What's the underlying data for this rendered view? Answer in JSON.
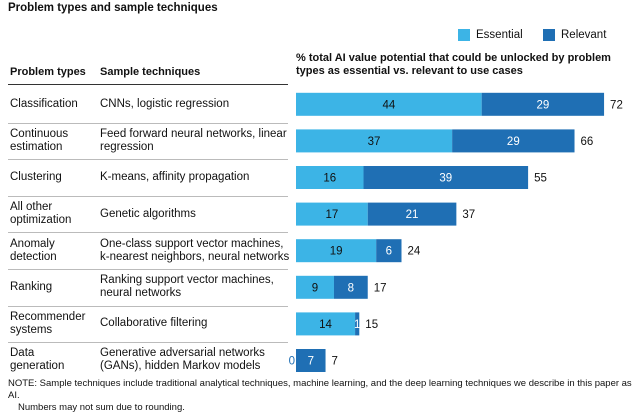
{
  "title": "Problem types and sample techniques",
  "legend": {
    "essential": "Essential",
    "relevant": "Relevant"
  },
  "colors": {
    "essential": "#3cb4e6",
    "relevant": "#1f6fb4"
  },
  "table": {
    "headers": {
      "problem_types": "Problem types",
      "sample_techniques": "Sample techniques",
      "chart_description": [
        "% total AI value potential that could be unlocked by problem",
        "types as essential vs. relevant to use cases"
      ]
    },
    "rows": [
      {
        "problem_type": [
          "Classification"
        ],
        "techniques": [
          "CNNs, logistic regression"
        ]
      },
      {
        "problem_type": [
          "Continuous",
          "estimation"
        ],
        "techniques": [
          "Feed forward neural networks, linear",
          "regression"
        ]
      },
      {
        "problem_type": [
          "Clustering"
        ],
        "techniques": [
          "K-means, affinity propagation"
        ]
      },
      {
        "problem_type": [
          "All other",
          "optimization"
        ],
        "techniques": [
          "Genetic algorithms"
        ]
      },
      {
        "problem_type": [
          "Anomaly",
          "detection"
        ],
        "techniques": [
          "One-class support vector machines,",
          "k-nearest neighbors, neural networks"
        ]
      },
      {
        "problem_type": [
          "Ranking"
        ],
        "techniques": [
          "Ranking support vector machines,",
          "neural networks"
        ]
      },
      {
        "problem_type": [
          "Recommender",
          "systems"
        ],
        "techniques": [
          "Collaborative filtering"
        ]
      },
      {
        "problem_type": [
          "Data",
          "generation"
        ],
        "techniques": [
          "Generative adversarial networks",
          "(GANs), hidden Markov models"
        ]
      }
    ]
  },
  "chart_data": {
    "type": "bar",
    "orientation": "horizontal",
    "stacked": true,
    "title": "% total AI value potential that could be unlocked by problem types as essential vs. relevant to use cases",
    "categories": [
      "Classification",
      "Continuous estimation",
      "Clustering",
      "All other optimization",
      "Anomaly detection",
      "Ranking",
      "Recommender systems",
      "Data generation"
    ],
    "series": [
      {
        "name": "Essential",
        "values": [
          44,
          37,
          16,
          17,
          19,
          9,
          14,
          0
        ],
        "labels": [
          "44",
          "37",
          "16",
          "17",
          "19",
          "9",
          "14",
          "0"
        ]
      },
      {
        "name": "Relevant",
        "values": [
          29,
          29,
          39,
          21,
          6,
          8,
          1,
          7
        ],
        "labels": [
          "29",
          "29",
          "39",
          "21",
          "6",
          "8",
          "1",
          "7"
        ]
      }
    ],
    "totals": [
      "72",
      "66",
      "55",
      "37",
      "24",
      "17",
      "15",
      "7"
    ],
    "xlim": [
      0,
      73
    ]
  },
  "note": [
    "NOTE: Sample techniques include traditional analytical techniques, machine learning, and the deep learning techniques we describe in this paper as AI.",
    "Numbers may not sum due to rounding."
  ]
}
